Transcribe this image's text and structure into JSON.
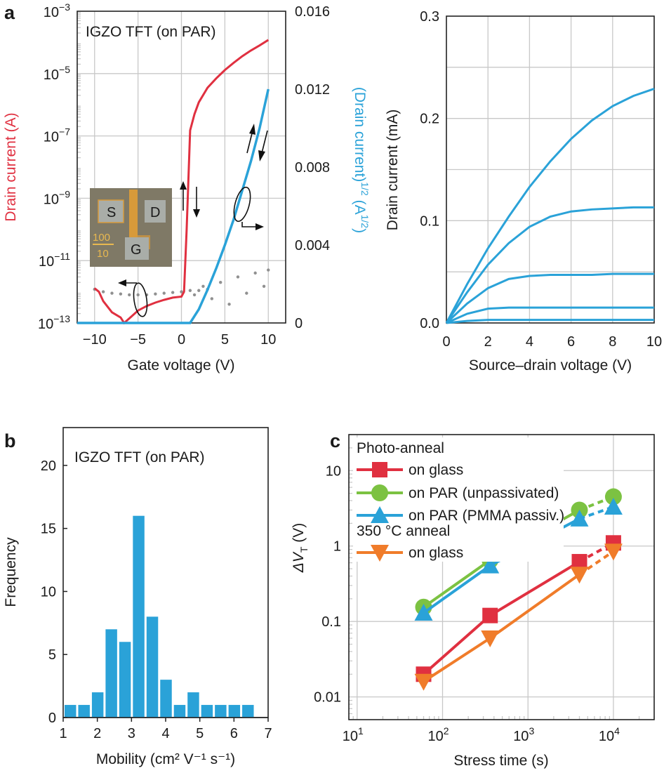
{
  "panel_labels": {
    "a": "a",
    "b": "b",
    "c": "c"
  },
  "colors": {
    "red": "#e03040",
    "blue": "#2aa2d8",
    "green": "#7cc242",
    "orange": "#f07c2a",
    "gray": "#909090",
    "grid": "#c8c8c8"
  },
  "chart_data": [
    {
      "type": "line",
      "panel": "a-left",
      "annotation": "IGZO TFT (on PAR)",
      "xlabel": "Gate voltage (V)",
      "xlim": [
        -12,
        12
      ],
      "x_ticks": [
        "−10",
        "−5",
        "0",
        "5",
        "10"
      ],
      "ylabel_left": "Drain current (A)",
      "yscale_left": "log",
      "ylim_left": [
        1e-13,
        0.001
      ],
      "y_ticks_left": [
        {
          "base": "10",
          "exp": "−3"
        },
        {
          "base": "10",
          "exp": "−5"
        },
        {
          "base": "10",
          "exp": "−7"
        },
        {
          "base": "10",
          "exp": "−9"
        },
        {
          "base": "10",
          "exp": "−11"
        },
        {
          "base": "10",
          "exp": "−13"
        }
      ],
      "ylabel_right": {
        "text": "(Drain current)",
        "sup": "1/2",
        "unit": " (A",
        "unit_sup": "1/2",
        "unit_end": ")"
      },
      "ylim_right": [
        0,
        0.016
      ],
      "y_ticks_right": [
        "0.016",
        "0.012",
        "0.008",
        "0.004",
        "0"
      ],
      "inset_labels": {
        "source": "S",
        "drain": "D",
        "gate": "G",
        "ratio_top": "100",
        "ratio_bottom": "10"
      },
      "series": [
        {
          "axis": "left",
          "color": "red",
          "x": [
            -10,
            -9.5,
            -9,
            -8,
            -7,
            -6.6,
            -6,
            -5,
            -4,
            -3,
            -2,
            -1,
            0,
            0.3,
            0.6,
            1,
            1.5,
            2,
            3,
            4,
            5,
            6,
            7,
            8,
            9,
            10
          ],
          "y": [
            1.3e-12,
            1e-12,
            5e-13,
            2.2e-13,
            1.5e-13,
            1e-13,
            1.4e-13,
            2.5e-13,
            3.5e-13,
            4.5e-13,
            5.5e-13,
            6.5e-13,
            7e-13,
            1e-12,
            1e-10,
            1.5e-07,
            5e-07,
            1.2e-06,
            3.5e-06,
            7e-06,
            1.3e-05,
            2.2e-05,
            3.6e-05,
            5.5e-05,
            8e-05,
            0.00012
          ]
        },
        {
          "axis": "right",
          "color": "blue",
          "x": [
            -12,
            0,
            1,
            2,
            3,
            4,
            5,
            6,
            7,
            8,
            9,
            10
          ],
          "y": [
            0,
            0,
            0,
            0.0007,
            0.0017,
            0.0028,
            0.004,
            0.0053,
            0.0068,
            0.0083,
            0.01,
            0.012
          ]
        },
        {
          "axis": "left",
          "color": "gray",
          "x": [
            -10,
            -9,
            -8,
            -7,
            -6,
            -5,
            -4,
            -3,
            -2,
            -1,
            0,
            1,
            2,
            3
          ],
          "y": [
            1.2e-12,
            1e-12,
            9e-13,
            8.5e-13,
            8e-13,
            8e-13,
            8e-13,
            8.5e-13,
            9e-13,
            9.5e-13,
            1e-12,
            1.1e-12,
            1.1e-12,
            1.2e-12
          ]
        }
      ]
    },
    {
      "type": "line",
      "panel": "a-right",
      "xlabel": "Source–drain voltage (V)",
      "ylabel": "Drain current (mA)",
      "xlim": [
        0,
        10
      ],
      "ylim": [
        0,
        0.3
      ],
      "x_ticks": [
        "0",
        "2",
        "4",
        "6",
        "8",
        "10"
      ],
      "y_ticks": [
        "0.0",
        "0.1",
        "0.2",
        "0.3"
      ],
      "series": [
        {
          "color": "blue",
          "x": [
            0,
            1,
            2,
            3,
            4,
            5,
            6,
            7,
            8,
            9,
            10
          ],
          "y": [
            0,
            0.038,
            0.073,
            0.104,
            0.133,
            0.158,
            0.18,
            0.198,
            0.212,
            0.222,
            0.229
          ]
        },
        {
          "color": "blue",
          "x": [
            0,
            1,
            2,
            3,
            4,
            5,
            6,
            7,
            8,
            9,
            10
          ],
          "y": [
            0,
            0.03,
            0.057,
            0.078,
            0.094,
            0.104,
            0.109,
            0.111,
            0.112,
            0.113,
            0.113
          ]
        },
        {
          "color": "blue",
          "x": [
            0,
            1,
            2,
            3,
            4,
            5,
            6,
            7,
            8,
            9,
            10
          ],
          "y": [
            0,
            0.019,
            0.034,
            0.043,
            0.046,
            0.047,
            0.047,
            0.047,
            0.048,
            0.048,
            0.048
          ]
        },
        {
          "color": "blue",
          "x": [
            0,
            1,
            2,
            3,
            4,
            5,
            6,
            7,
            8,
            9,
            10
          ],
          "y": [
            0,
            0.009,
            0.014,
            0.015,
            0.015,
            0.015,
            0.015,
            0.015,
            0.015,
            0.015,
            0.015
          ]
        },
        {
          "color": "blue",
          "x": [
            0,
            1,
            2,
            3,
            4,
            5,
            6,
            7,
            8,
            9,
            10
          ],
          "y": [
            0,
            0.002,
            0.003,
            0.003,
            0.003,
            0.003,
            0.003,
            0.003,
            0.003,
            0.003,
            0.003
          ]
        }
      ]
    },
    {
      "type": "bar",
      "panel": "b",
      "annotation": "IGZO TFT (on PAR)",
      "xlabel": "Mobility (cm² V⁻¹ s⁻¹)",
      "ylabel": "Frequency",
      "xlim": [
        1,
        7
      ],
      "ylim": [
        0,
        23
      ],
      "x_ticks": [
        "1",
        "2",
        "3",
        "4",
        "5",
        "6",
        "7"
      ],
      "y_ticks": [
        "0",
        "5",
        "10",
        "15",
        "20"
      ],
      "bin_width": 0.4,
      "bin_starts": [
        1.0,
        1.4,
        1.8,
        2.2,
        2.6,
        3.0,
        3.4,
        3.8,
        4.2,
        4.6,
        5.0,
        5.4,
        5.8,
        6.2,
        6.6
      ],
      "values": [
        1,
        1,
        2,
        7,
        6,
        16,
        8,
        3,
        1,
        2,
        1,
        1,
        1,
        1,
        0
      ],
      "color": "blue"
    },
    {
      "type": "line",
      "panel": "c",
      "xlabel": "Stress time (s)",
      "ylabel": "ΔV",
      "ylabel_sub": "T",
      "ylabel_unit": " (V)",
      "xscale": "log",
      "yscale": "log",
      "xlim": [
        8,
        30000
      ],
      "ylim": [
        0.005,
        30
      ],
      "x_ticks": [
        {
          "base": "10",
          "exp": "1"
        },
        {
          "base": "10",
          "exp": "2"
        },
        {
          "base": "10",
          "exp": "3"
        },
        {
          "base": "10",
          "exp": "4"
        }
      ],
      "y_ticks": [
        "10",
        "1",
        "0.1",
        "0.01"
      ],
      "legend": {
        "group1": "Photo-anneal",
        "group2": "350 °C anneal",
        "entries": [
          "on glass",
          "on PAR (unpassivated)",
          "on PAR (PMMA passiv.)",
          "on glass"
        ]
      },
      "series": [
        {
          "name": "on glass",
          "group": "Photo-anneal",
          "color": "red",
          "marker": "square",
          "x": [
            60,
            360,
            4000,
            10000
          ],
          "y": [
            0.02,
            0.12,
            0.62,
            1.1
          ]
        },
        {
          "name": "on PAR (unpassivated)",
          "group": "Photo-anneal",
          "color": "green",
          "marker": "circle",
          "x": [
            60,
            360,
            4000,
            10000
          ],
          "y": [
            0.155,
            0.65,
            3.0,
            4.5
          ]
        },
        {
          "name": "on PAR (PMMA passiv.)",
          "group": "Photo-anneal",
          "color": "blue",
          "marker": "triangle-up",
          "x": [
            60,
            360,
            4000,
            10000
          ],
          "y": [
            0.13,
            0.55,
            2.3,
            3.3
          ]
        },
        {
          "name": "on glass",
          "group": "350 °C anneal",
          "color": "orange",
          "marker": "triangle-down",
          "x": [
            60,
            360,
            4000,
            10000
          ],
          "y": [
            0.016,
            0.06,
            0.42,
            0.85
          ]
        }
      ]
    }
  ]
}
